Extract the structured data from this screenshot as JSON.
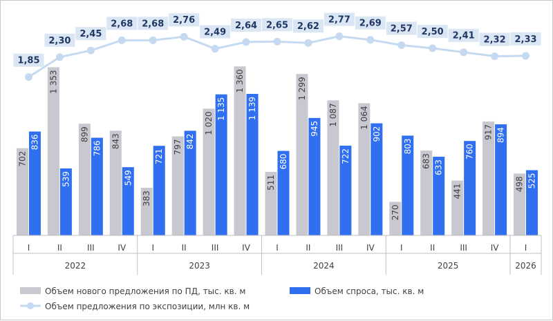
{
  "chart_data": {
    "type": "bar",
    "categories": [
      "I",
      "II",
      "III",
      "IV",
      "I",
      "II",
      "III",
      "IV",
      "I",
      "II",
      "III",
      "IV",
      "I",
      "II",
      "III",
      "IV",
      "I"
    ],
    "groups": [
      {
        "label": "2022",
        "count": 4
      },
      {
        "label": "2023",
        "count": 4
      },
      {
        "label": "2024",
        "count": 4
      },
      {
        "label": "2025",
        "count": 4
      },
      {
        "label": "2026",
        "count": 1
      }
    ],
    "series": [
      {
        "name": "Объем нового предложения по ПД, тыс. кв. м",
        "kind": "bar",
        "color": "#c8c8d0",
        "values": [
          702,
          1353,
          899,
          843,
          383,
          797,
          1020,
          1360,
          511,
          1299,
          1087,
          1064,
          270,
          683,
          441,
          917,
          498
        ],
        "labels": [
          "702",
          "1 353",
          "899",
          "843",
          "383",
          "797",
          "1 020",
          "1 360",
          "511",
          "1 299",
          "1 087",
          "1 064",
          "270",
          "683",
          "441",
          "917",
          "498"
        ]
      },
      {
        "name": "Объем спроса, тыс. кв. м",
        "kind": "bar",
        "color": "#2f6ff0",
        "values": [
          836,
          539,
          786,
          549,
          721,
          842,
          1135,
          1139,
          680,
          945,
          722,
          902,
          803,
          633,
          760,
          894,
          525
        ],
        "labels": [
          "836",
          "539",
          "786",
          "549",
          "721",
          "842",
          "1 135",
          "1 139",
          "680",
          "945",
          "722",
          "902",
          "803",
          "633",
          "760",
          "894",
          "525"
        ]
      },
      {
        "name": "Объем предложения по экспозиции, млн кв. м",
        "kind": "line",
        "color": "#c5d9f1",
        "values": [
          1.85,
          2.3,
          2.45,
          2.68,
          2.68,
          2.76,
          2.49,
          2.64,
          2.65,
          2.62,
          2.77,
          2.69,
          2.57,
          2.5,
          2.41,
          2.32,
          2.33
        ],
        "labels": [
          "1,85",
          "2,30",
          "2,45",
          "2,68",
          "2,68",
          "2,76",
          "2,49",
          "2,64",
          "2,65",
          "2,62",
          "2,77",
          "2,69",
          "2,57",
          "2,50",
          "2,41",
          "2,32",
          "2,33"
        ]
      }
    ],
    "bar_ylim": [
      0,
      1600
    ],
    "line_ylim": [
      1.3,
      2.95
    ],
    "legend_position": "bottom",
    "grid": false
  }
}
